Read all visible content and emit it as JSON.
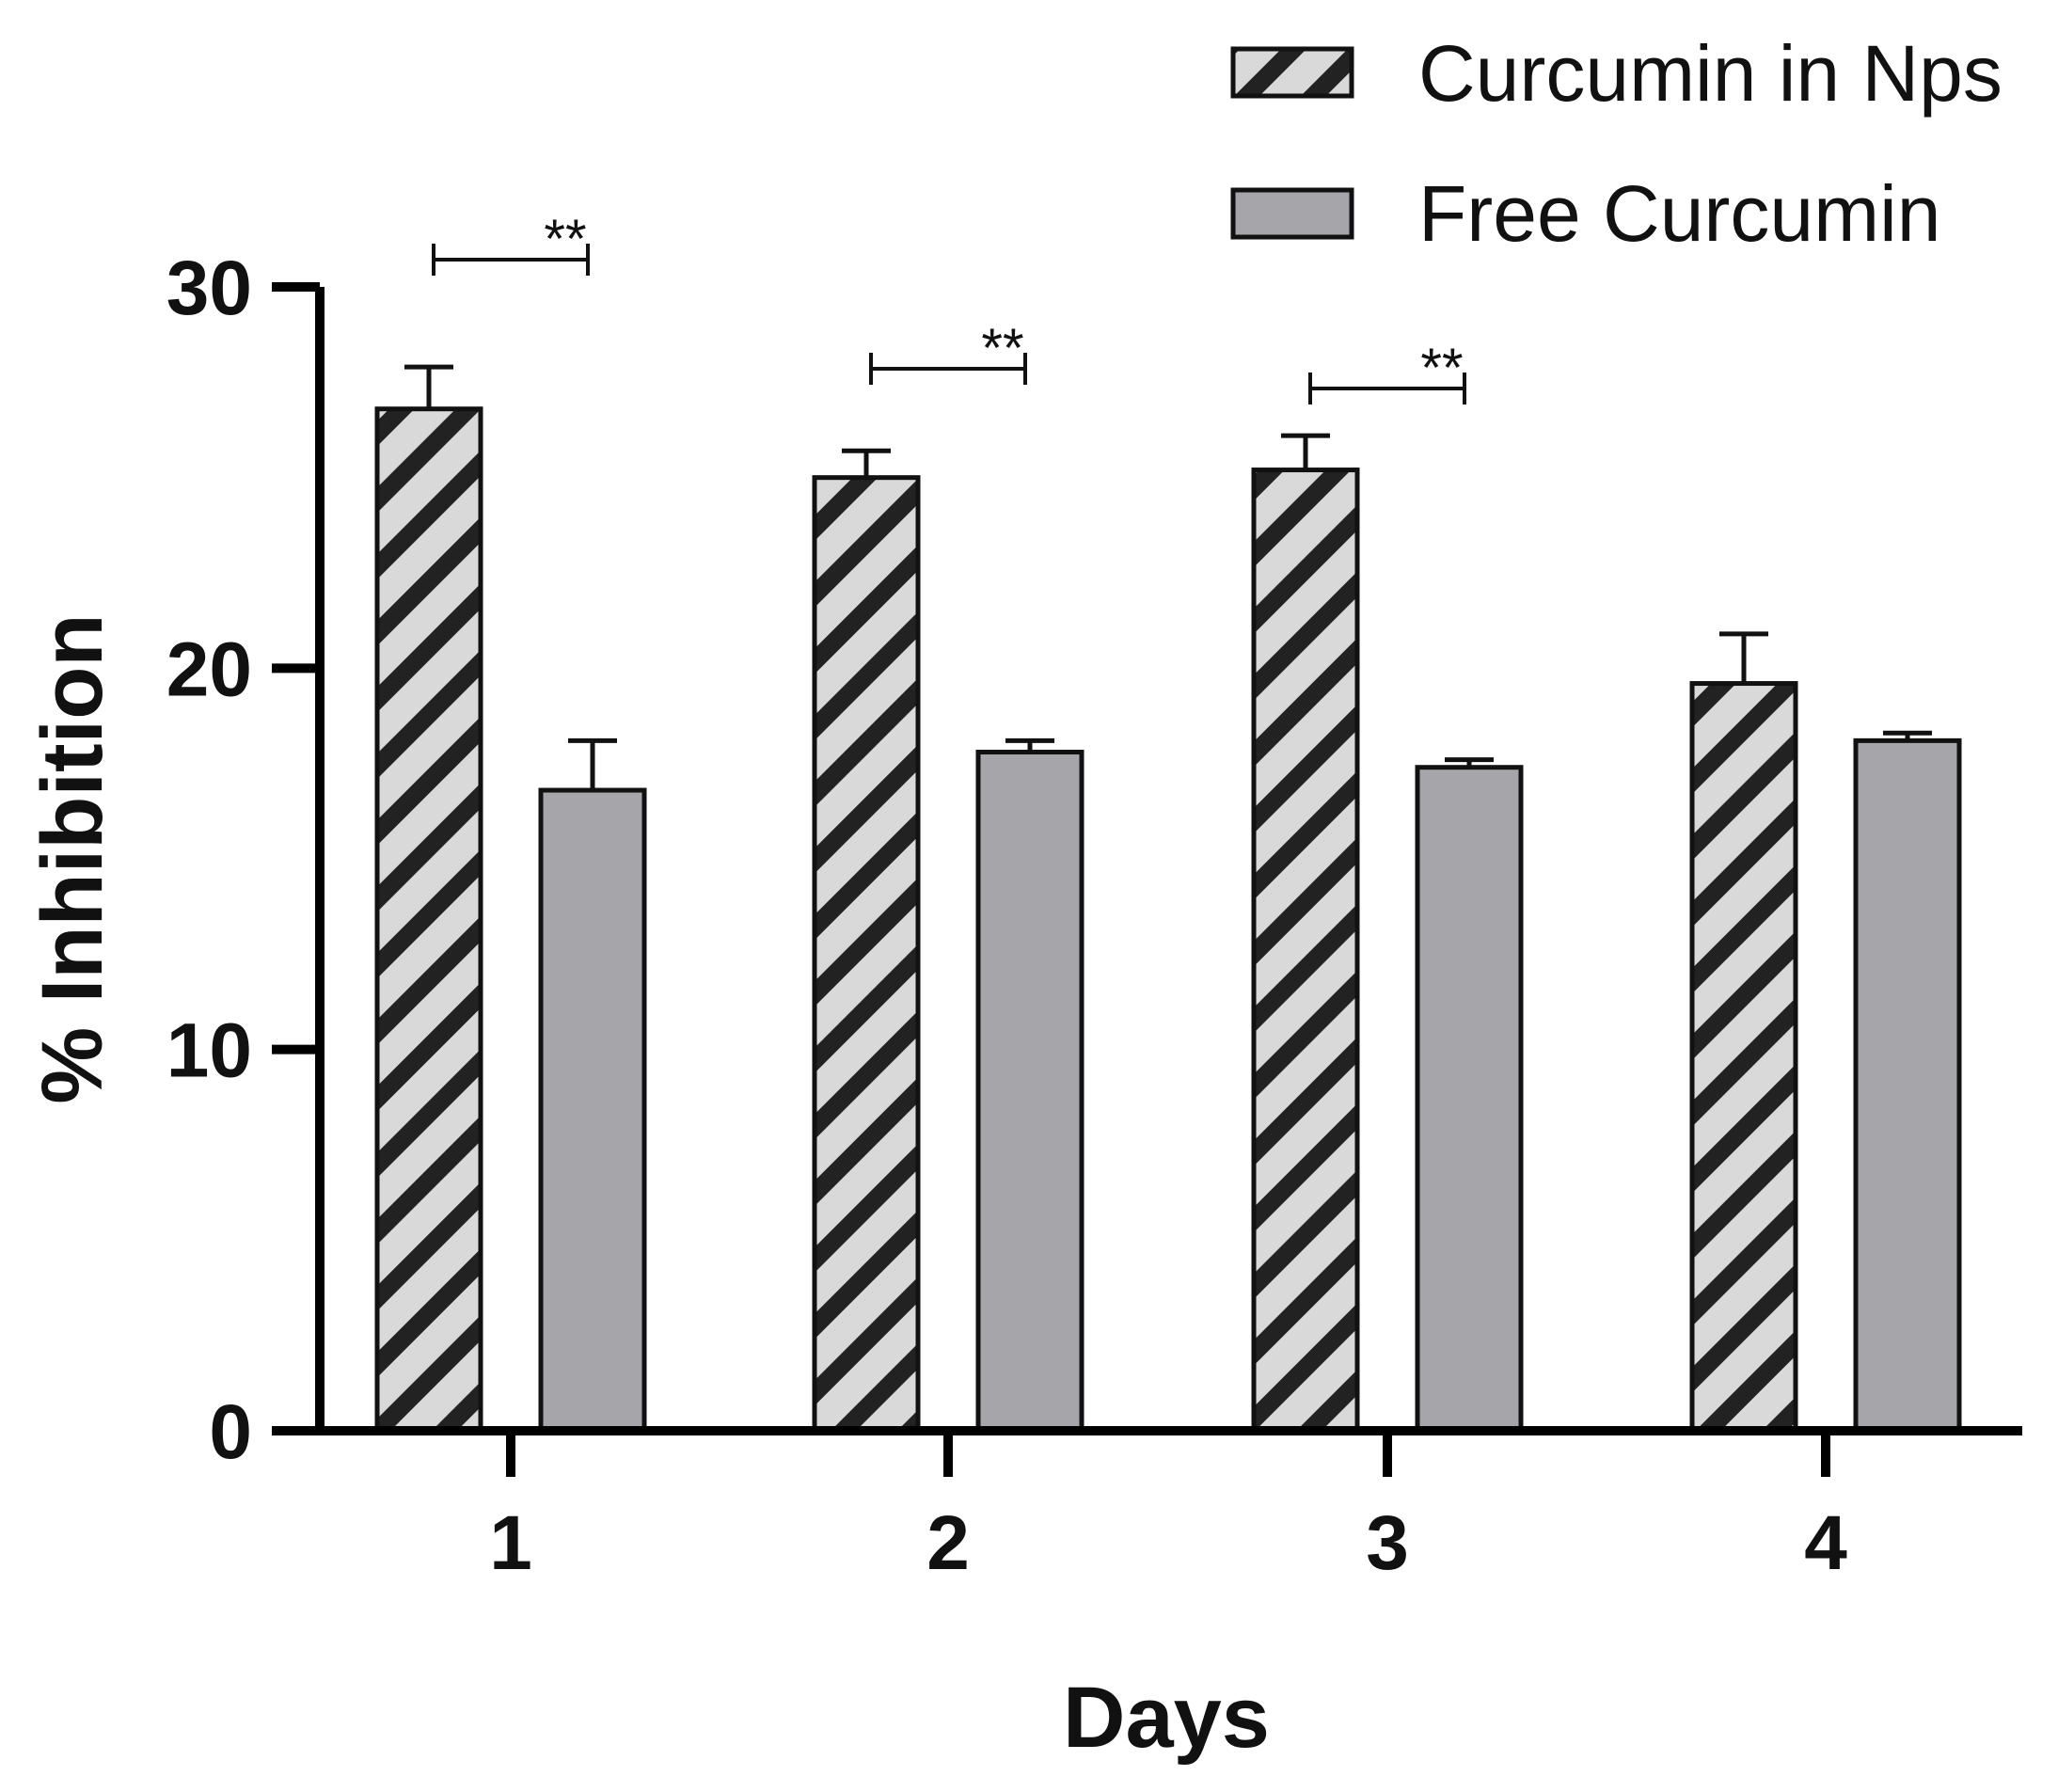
{
  "chart_data": {
    "type": "bar",
    "title": "",
    "xlabel": "Days",
    "ylabel": "% Inhibition",
    "categories": [
      "1",
      "2",
      "3",
      "4"
    ],
    "ylim": [
      0,
      30
    ],
    "yticks": [
      "0",
      "10",
      "20",
      "30"
    ],
    "grid": false,
    "legend_position": "top-right",
    "series": [
      {
        "name": "Curcumin in Nps",
        "values": [
          26.8,
          25.0,
          25.2,
          19.6
        ],
        "errors": [
          1.1,
          0.7,
          0.9,
          1.3
        ],
        "fill": "#d9d9d9",
        "pattern": "diagonal-hatch",
        "hatch_color": "#222222"
      },
      {
        "name": "Free Curcumin",
        "values": [
          16.8,
          17.8,
          17.4,
          18.1
        ],
        "errors": [
          1.3,
          0.3,
          0.2,
          0.2
        ],
        "fill": "#a6a6aa"
      }
    ],
    "significance": [
      {
        "category_index": 0,
        "label": "**"
      },
      {
        "category_index": 1,
        "label": "**"
      },
      {
        "category_index": 2,
        "label": "**"
      }
    ]
  }
}
